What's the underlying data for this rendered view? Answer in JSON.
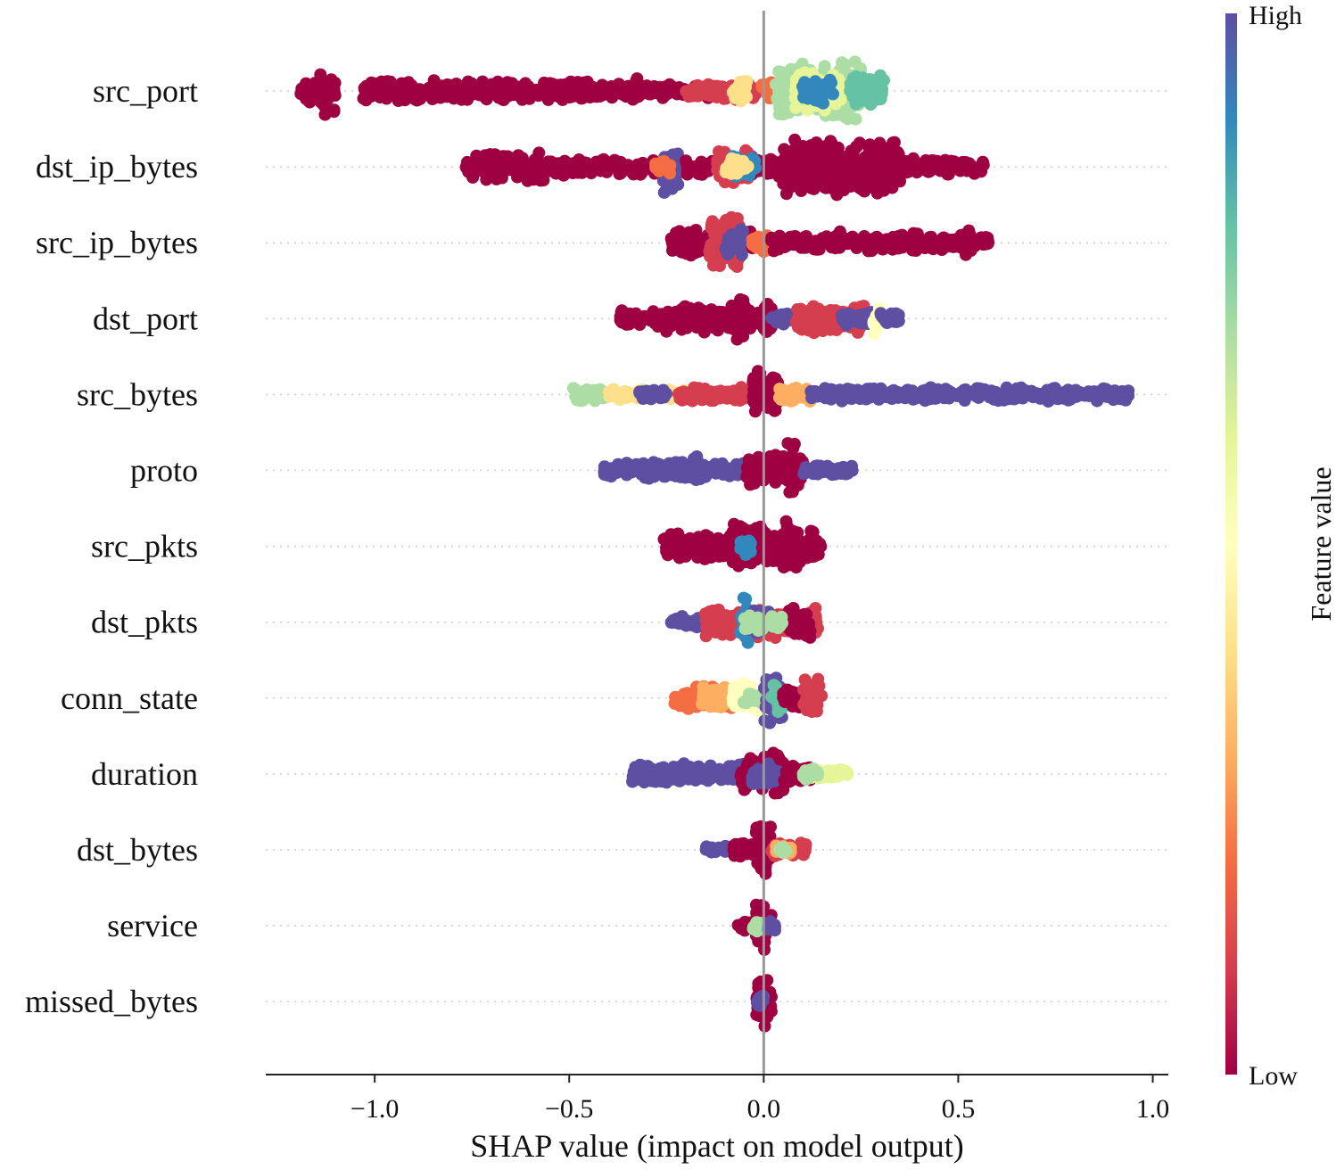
{
  "chart_data": {
    "type": "scatter",
    "subtype": "shap-beeswarm",
    "title": "",
    "xlabel": "SHAP value (impact on model output)",
    "xlim": [
      -1.28,
      1.04
    ],
    "xticks": [
      -1.0,
      -0.5,
      0.0,
      0.5,
      1.0
    ],
    "xtick_labels": [
      "−1.0",
      "−0.5",
      "0.0",
      "0.5",
      "1.0"
    ],
    "features": [
      {
        "name": "src_port",
        "min": -1.19,
        "max": 0.31,
        "segments": [
          {
            "from": -1.19,
            "to": -1.15,
            "w": 0.45,
            "color": "#9e0142"
          },
          {
            "from": -1.14,
            "to": -1.1,
            "w": 0.8,
            "color": "#9e0142"
          },
          {
            "from": -1.03,
            "to": -0.45,
            "w": 0.35,
            "color": "#9e0142"
          },
          {
            "from": -0.45,
            "to": -0.1,
            "w": 0.25,
            "color": "#9e0142"
          },
          {
            "from": -0.34,
            "to": -0.32,
            "w": 0.6,
            "color": "#9e0142"
          },
          {
            "from": -0.2,
            "to": -0.02,
            "w": 0.3,
            "color": "#d53e4f"
          },
          {
            "from": -0.08,
            "to": -0.04,
            "w": 0.4,
            "color": "#fee08b"
          },
          {
            "from": -0.01,
            "to": 0.03,
            "w": 0.3,
            "color": "#f46d43"
          },
          {
            "from": 0.03,
            "to": 0.25,
            "w": 1.0,
            "color": "#abdda4"
          },
          {
            "from": 0.08,
            "to": 0.2,
            "w": 0.7,
            "color": "#e6f598"
          },
          {
            "from": 0.1,
            "to": 0.18,
            "w": 0.5,
            "color": "#3288bd"
          },
          {
            "from": 0.22,
            "to": 0.31,
            "w": 0.55,
            "color": "#66c2a5"
          }
        ]
      },
      {
        "name": "dst_ip_bytes",
        "min": -0.77,
        "max": 0.57,
        "segments": [
          {
            "from": -0.77,
            "to": -0.55,
            "w": 0.5,
            "color": "#9e0142"
          },
          {
            "from": -0.55,
            "to": -0.22,
            "w": 0.3,
            "color": "#9e0142"
          },
          {
            "from": -0.26,
            "to": -0.22,
            "w": 1.0,
            "color": "#5e4fa2"
          },
          {
            "from": -0.28,
            "to": -0.24,
            "w": 0.3,
            "color": "#f46d43"
          },
          {
            "from": -0.2,
            "to": 0.05,
            "w": 0.35,
            "color": "#9e0142"
          },
          {
            "from": -0.12,
            "to": -0.04,
            "w": 0.6,
            "color": "#d53e4f"
          },
          {
            "from": -0.08,
            "to": -0.02,
            "w": 0.4,
            "color": "#3288bd"
          },
          {
            "from": -0.1,
            "to": -0.04,
            "w": 0.3,
            "color": "#fee08b"
          },
          {
            "from": 0.05,
            "to": 0.35,
            "w": 1.0,
            "color": "#9e0142"
          },
          {
            "from": 0.35,
            "to": 0.57,
            "w": 0.3,
            "color": "#9e0142"
          }
        ]
      },
      {
        "name": "src_ip_bytes",
        "min": -0.24,
        "max": 0.58,
        "segments": [
          {
            "from": -0.24,
            "to": -0.02,
            "w": 0.45,
            "color": "#9e0142"
          },
          {
            "from": -0.14,
            "to": -0.06,
            "w": 1.0,
            "color": "#d53e4f"
          },
          {
            "from": -0.1,
            "to": -0.05,
            "w": 0.5,
            "color": "#5e4fa2"
          },
          {
            "from": -0.03,
            "to": 0.02,
            "w": 0.3,
            "color": "#f46d43"
          },
          {
            "from": 0.02,
            "to": 0.58,
            "w": 0.3,
            "color": "#9e0142"
          },
          {
            "from": 0.18,
            "to": 0.2,
            "w": 0.5,
            "color": "#9e0142"
          },
          {
            "from": 0.38,
            "to": 0.4,
            "w": 0.5,
            "color": "#9e0142"
          },
          {
            "from": 0.51,
            "to": 0.53,
            "w": 0.55,
            "color": "#9e0142"
          }
        ]
      },
      {
        "name": "dst_port",
        "min": -0.37,
        "max": 0.35,
        "segments": [
          {
            "from": -0.37,
            "to": -0.25,
            "w": 0.3,
            "color": "#9e0142"
          },
          {
            "from": -0.25,
            "to": 0.02,
            "w": 0.5,
            "color": "#9e0142"
          },
          {
            "from": -0.07,
            "to": -0.05,
            "w": 0.85,
            "color": "#9e0142"
          },
          {
            "from": 0.0,
            "to": 0.02,
            "w": 0.65,
            "color": "#9e0142"
          },
          {
            "from": 0.02,
            "to": 0.08,
            "w": 0.2,
            "color": "#5e4fa2"
          },
          {
            "from": 0.08,
            "to": 0.26,
            "w": 0.5,
            "color": "#d53e4f"
          },
          {
            "from": 0.2,
            "to": 0.28,
            "w": 0.25,
            "color": "#5e4fa2"
          },
          {
            "from": 0.28,
            "to": 0.3,
            "w": 0.6,
            "color": "#ffffbf"
          },
          {
            "from": 0.3,
            "to": 0.35,
            "w": 0.2,
            "color": "#5e4fa2"
          }
        ]
      },
      {
        "name": "src_bytes",
        "min": -0.49,
        "max": 0.94,
        "segments": [
          {
            "from": -0.49,
            "to": -0.4,
            "w": 0.25,
            "color": "#abdda4"
          },
          {
            "from": -0.4,
            "to": -0.2,
            "w": 0.2,
            "color": "#fee08b"
          },
          {
            "from": -0.22,
            "to": -0.02,
            "w": 0.25,
            "color": "#d53e4f"
          },
          {
            "from": -0.32,
            "to": -0.25,
            "w": 0.2,
            "color": "#5e4fa2"
          },
          {
            "from": -0.03,
            "to": 0.04,
            "w": 0.9,
            "color": "#9e0142"
          },
          {
            "from": 0.04,
            "to": 0.12,
            "w": 0.3,
            "color": "#fdae61"
          },
          {
            "from": 0.12,
            "to": 0.94,
            "w": 0.25,
            "color": "#5e4fa2"
          }
        ]
      },
      {
        "name": "proto",
        "min": -0.41,
        "max": 0.23,
        "segments": [
          {
            "from": -0.41,
            "to": -0.05,
            "w": 0.3,
            "color": "#5e4fa2"
          },
          {
            "from": -0.18,
            "to": -0.16,
            "w": 0.55,
            "color": "#5e4fa2"
          },
          {
            "from": -0.05,
            "to": 0.1,
            "w": 0.55,
            "color": "#9e0142"
          },
          {
            "from": 0.06,
            "to": 0.09,
            "w": 0.95,
            "color": "#9e0142"
          },
          {
            "from": 0.1,
            "to": 0.23,
            "w": 0.2,
            "color": "#5e4fa2"
          }
        ]
      },
      {
        "name": "src_pkts",
        "min": -0.26,
        "max": 0.15,
        "segments": [
          {
            "from": -0.26,
            "to": -0.1,
            "w": 0.45,
            "color": "#9e0142"
          },
          {
            "from": -0.1,
            "to": 0.15,
            "w": 0.55,
            "color": "#9e0142"
          },
          {
            "from": -0.08,
            "to": 0.0,
            "w": 0.85,
            "color": "#9e0142"
          },
          {
            "from": 0.05,
            "to": 0.09,
            "w": 0.95,
            "color": "#9e0142"
          },
          {
            "from": -0.06,
            "to": -0.03,
            "w": 0.3,
            "color": "#3288bd"
          }
        ]
      },
      {
        "name": "dst_pkts",
        "min": -0.24,
        "max": 0.14,
        "segments": [
          {
            "from": -0.24,
            "to": -0.14,
            "w": 0.2,
            "color": "#5e4fa2"
          },
          {
            "from": -0.15,
            "to": 0.14,
            "w": 0.55,
            "color": "#d53e4f"
          },
          {
            "from": -0.06,
            "to": -0.04,
            "w": 0.95,
            "color": "#3288bd"
          },
          {
            "from": -0.04,
            "to": 0.02,
            "w": 0.45,
            "color": "#5e4fa2"
          },
          {
            "from": 0.06,
            "to": 0.12,
            "w": 0.55,
            "color": "#9e0142"
          },
          {
            "from": -0.05,
            "to": 0.05,
            "w": 0.3,
            "color": "#abdda4"
          }
        ]
      },
      {
        "name": "conn_state",
        "min": -0.23,
        "max": 0.15,
        "segments": [
          {
            "from": -0.23,
            "to": -0.08,
            "w": 0.4,
            "color": "#f46d43"
          },
          {
            "from": -0.16,
            "to": -0.1,
            "w": 0.45,
            "color": "#fdae61"
          },
          {
            "from": -0.08,
            "to": 0.0,
            "w": 0.55,
            "color": "#ffffbf"
          },
          {
            "from": -0.06,
            "to": 0.0,
            "w": 0.25,
            "color": "#abdda4"
          },
          {
            "from": 0.0,
            "to": 0.05,
            "w": 0.9,
            "color": "#5e4fa2"
          },
          {
            "from": 0.02,
            "to": 0.05,
            "w": 0.5,
            "color": "#66c2a5"
          },
          {
            "from": 0.05,
            "to": 0.1,
            "w": 0.35,
            "color": "#9e0142"
          },
          {
            "from": 0.1,
            "to": 0.15,
            "w": 0.75,
            "color": "#d53e4f"
          }
        ]
      },
      {
        "name": "duration",
        "min": -0.34,
        "max": 0.22,
        "segments": [
          {
            "from": -0.34,
            "to": -0.05,
            "w": 0.35,
            "color": "#5e4fa2"
          },
          {
            "from": -0.06,
            "to": 0.05,
            "w": 0.6,
            "color": "#9e0142"
          },
          {
            "from": 0.02,
            "to": 0.05,
            "w": 0.95,
            "color": "#9e0142"
          },
          {
            "from": -0.03,
            "to": 0.04,
            "w": 0.4,
            "color": "#5e4fa2"
          },
          {
            "from": 0.05,
            "to": 0.12,
            "w": 0.35,
            "color": "#9e0142"
          },
          {
            "from": 0.12,
            "to": 0.22,
            "w": 0.2,
            "color": "#e6f598"
          },
          {
            "from": 0.1,
            "to": 0.14,
            "w": 0.2,
            "color": "#abdda4"
          }
        ]
      },
      {
        "name": "dst_bytes",
        "min": -0.15,
        "max": 0.11,
        "segments": [
          {
            "from": -0.15,
            "to": -0.08,
            "w": 0.2,
            "color": "#5e4fa2"
          },
          {
            "from": -0.08,
            "to": 0.0,
            "w": 0.3,
            "color": "#9e0142"
          },
          {
            "from": -0.02,
            "to": 0.02,
            "w": 1.0,
            "color": "#9e0142"
          },
          {
            "from": 0.02,
            "to": 0.11,
            "w": 0.25,
            "color": "#d53e4f"
          },
          {
            "from": 0.03,
            "to": 0.07,
            "w": 0.2,
            "color": "#fdae61"
          },
          {
            "from": 0.04,
            "to": 0.06,
            "w": 0.15,
            "color": "#abdda4"
          }
        ]
      },
      {
        "name": "service",
        "min": -0.07,
        "max": 0.03,
        "segments": [
          {
            "from": -0.07,
            "to": -0.03,
            "w": 0.2,
            "color": "#9e0142"
          },
          {
            "from": -0.02,
            "to": 0.02,
            "w": 0.95,
            "color": "#9e0142"
          },
          {
            "from": -0.03,
            "to": 0.0,
            "w": 0.2,
            "color": "#abdda4"
          },
          {
            "from": 0.01,
            "to": 0.03,
            "w": 0.3,
            "color": "#5e4fa2"
          }
        ]
      },
      {
        "name": "missed_bytes",
        "min": -0.02,
        "max": 0.02,
        "segments": [
          {
            "from": -0.02,
            "to": 0.02,
            "w": 0.95,
            "color": "#9e0142"
          },
          {
            "from": -0.02,
            "to": 0.0,
            "w": 0.2,
            "color": "#5e4fa2"
          }
        ]
      }
    ],
    "colorbar": {
      "label": "Feature value",
      "high_label": "High",
      "low_label": "Low",
      "colormap": "Spectral",
      "stops": [
        "#9e0142",
        "#d53e4f",
        "#f46d43",
        "#fdae61",
        "#fee08b",
        "#ffffbf",
        "#e6f598",
        "#abdda4",
        "#66c2a5",
        "#3288bd",
        "#5e4fa2"
      ]
    }
  }
}
